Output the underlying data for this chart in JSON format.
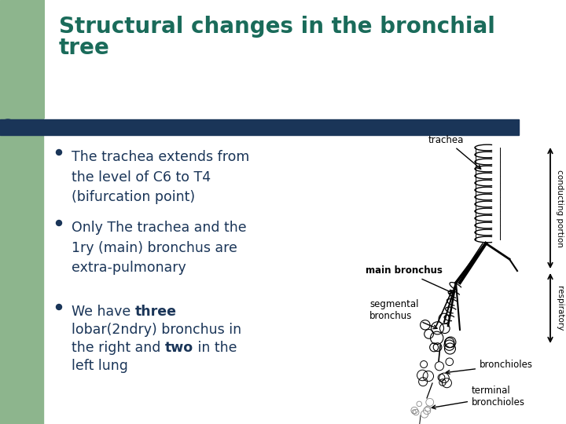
{
  "title_line1": "Structural changes in the bronchial",
  "title_line2": "tree",
  "title_color": "#1a6b5a",
  "title_fontsize": 20,
  "title_fontweight": "bold",
  "bg_color": "#ffffff",
  "left_bg_color": "#8db58d",
  "header_bar_color": "#1a3558",
  "bullet_color": "#1a3558",
  "text_color": "#1a3558",
  "text_fontsize": 12.5,
  "bullet1": "The trachea extends from\nthe level of C6 to T4\n(bifurcation point)",
  "bullet2": "Only The trachea and the\n1ry (main) bronchus are\nextra-pulmonary",
  "bullet3_p1": "We have ",
  "bullet3_bold1": "three",
  "bullet3_p2": "\nlobar(2ndry) bronchus in\nthe right and ",
  "bullet3_bold2": "two",
  "bullet3_p3": " in the\nleft lung",
  "fig_width": 7.2,
  "fig_height": 5.4,
  "dpi": 100
}
